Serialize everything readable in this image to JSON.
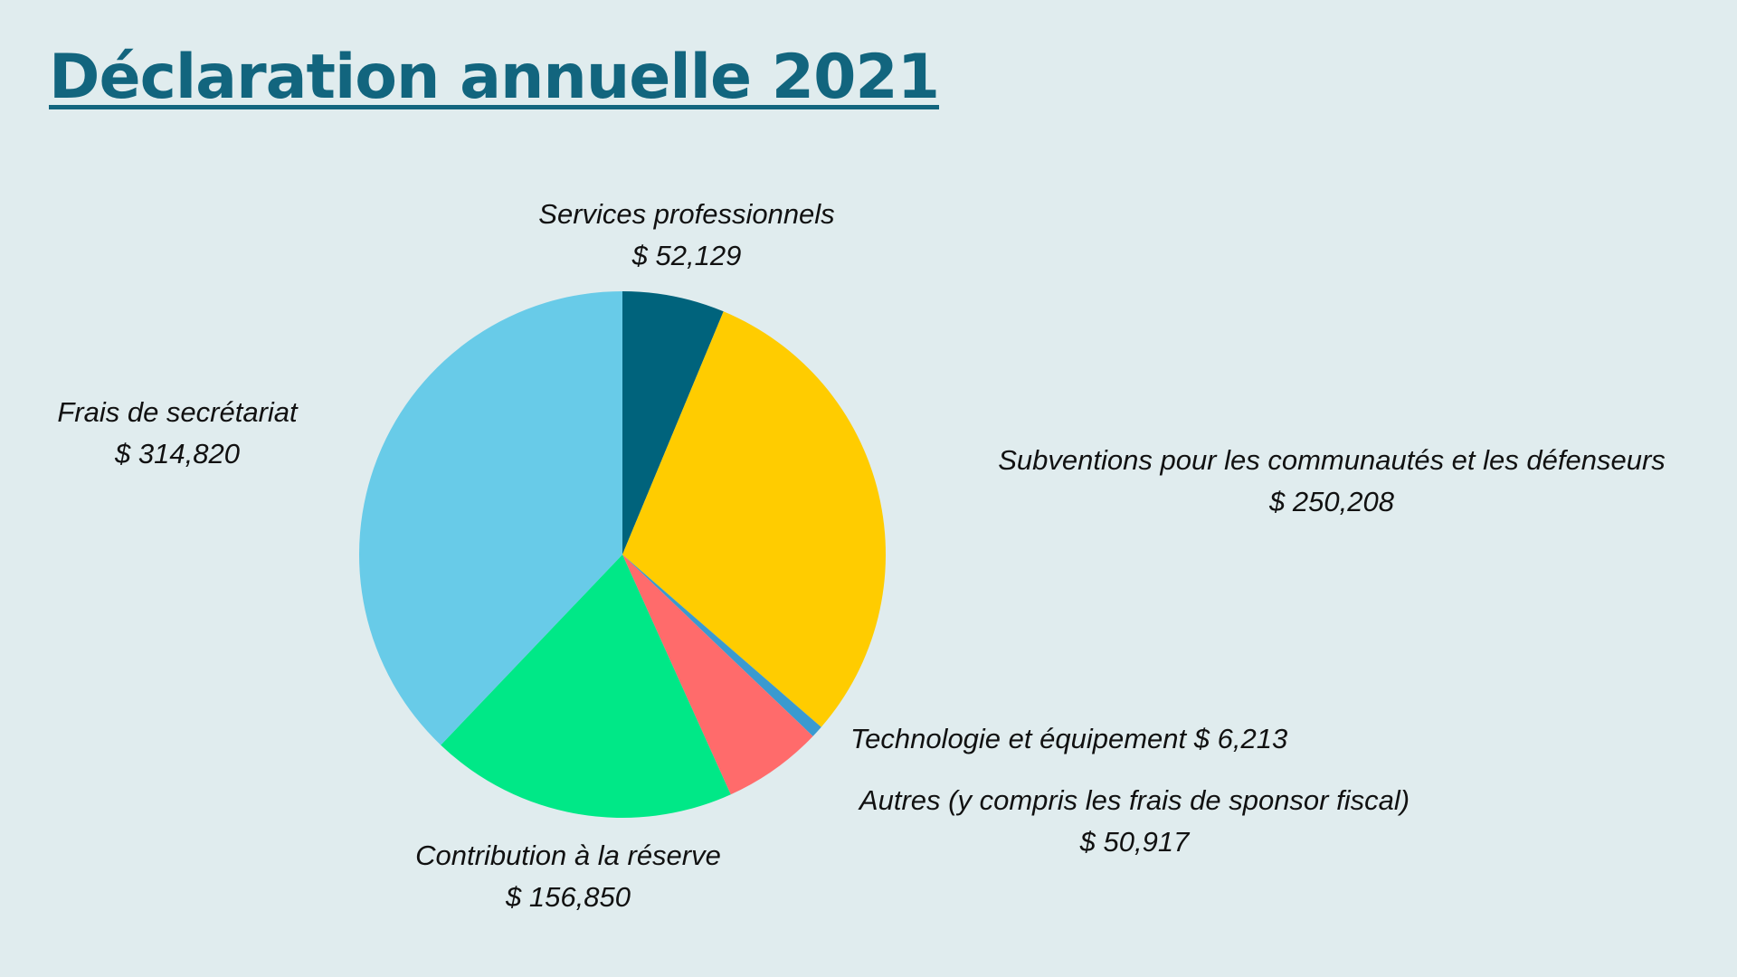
{
  "title": "Déclaration annuelle 2021",
  "chart_data": {
    "type": "pie",
    "title": "Déclaration annuelle 2021",
    "start": "top, clockwise",
    "slices": [
      {
        "label": "Services professionnels",
        "value": 52129,
        "value_text": "$ 52,129",
        "color": "#00637c"
      },
      {
        "label": "Subventions pour les communautés et les défenseurs",
        "value": 250208,
        "value_text": "$ 250,208",
        "color": "#ffcc00"
      },
      {
        "label": "Technologie et équipement",
        "value": 6213,
        "value_text": "$ 6,213",
        "color": "#3a9ad0"
      },
      {
        "label": "Autres (y compris les frais de sponsor fiscal)",
        "value": 50917,
        "value_text": "$ 50,917",
        "color": "#ff6b6b"
      },
      {
        "label": "Contribution à la réserve",
        "value": 156850,
        "value_text": "$ 156,850",
        "color": "#00e887"
      },
      {
        "label": "Frais de secrétariat",
        "value": 314820,
        "value_text": "$ 314,820",
        "color": "#68cbe8"
      }
    ]
  }
}
